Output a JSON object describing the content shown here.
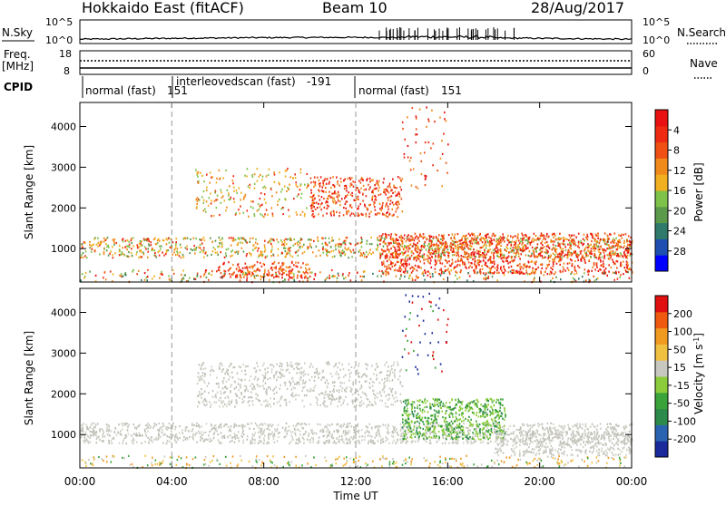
{
  "header": {
    "station": "Hokkaido East (fitACF)",
    "beam": "Beam 10",
    "date": "28/Aug/2017"
  },
  "top_panel": {
    "left_label": "N.Sky",
    "right_label": "N.Search",
    "left_ticks": [
      "10^5",
      "10^0"
    ],
    "right_ticks": [
      "10^5",
      "10^0"
    ]
  },
  "freq_panel": {
    "left_label_top": "Freq.",
    "left_label_bottom": "[MHz]",
    "left_ticks": [
      "18",
      "8"
    ],
    "right_ticks": [
      "60",
      "0"
    ],
    "right_label": "Nave"
  },
  "cpid_panel": {
    "label": "CPID",
    "segments": [
      {
        "name": "normal (fast)",
        "id": "151"
      },
      {
        "name": "interleovedscan (fast)",
        "id": "-191"
      },
      {
        "name": "normal (fast)",
        "id": "151"
      }
    ]
  },
  "x_axis": {
    "label": "Time UT",
    "ticks": [
      "00:00",
      "04:00",
      "08:00",
      "12:00",
      "16:00",
      "20:00",
      "00:00"
    ]
  },
  "chart_data": [
    {
      "type": "heatmap",
      "title": "Power",
      "ylabel": "Slant Range [km]",
      "ylim": [
        180,
        4590
      ],
      "yticks": [
        "1000",
        "2000",
        "3000",
        "4000"
      ],
      "x": [
        "00:00",
        "04:00",
        "08:00",
        "12:00",
        "16:00",
        "20:00",
        "00:00"
      ],
      "colorbar": {
        "label": "Power [dB]",
        "ticks": [
          "4",
          "8",
          "12",
          "16",
          "20",
          "24",
          "28"
        ],
        "colors": [
          "#0000ff",
          "#1e4fb0",
          "#2f7a6a",
          "#5a9a4a",
          "#7fc24a",
          "#f0b020",
          "#f08a1a",
          "#f05014",
          "#ee2a12",
          "#e81010"
        ]
      }
    },
    {
      "type": "heatmap",
      "title": "Velocity",
      "ylabel": "Slant Range [km]",
      "ylim": [
        180,
        4590
      ],
      "yticks": [
        "1000",
        "2000",
        "3000",
        "4000"
      ],
      "x": [
        "00:00",
        "04:00",
        "08:00",
        "12:00",
        "16:00",
        "20:00",
        "00:00"
      ],
      "colorbar": {
        "label": "Velocity [m s",
        "label_sup": "-1",
        "label_end": "]",
        "ticks": [
          "200",
          "100",
          "50",
          "15",
          "-15",
          "-50",
          "-100",
          "-200"
        ],
        "colors": [
          "#1a2a9a",
          "#2a64b0",
          "#2c8a4a",
          "#3aa43a",
          "#8ccc3a",
          "#c8c8c0",
          "#f0c040",
          "#f09a20",
          "#f05a10",
          "#e01010"
        ]
      }
    }
  ]
}
